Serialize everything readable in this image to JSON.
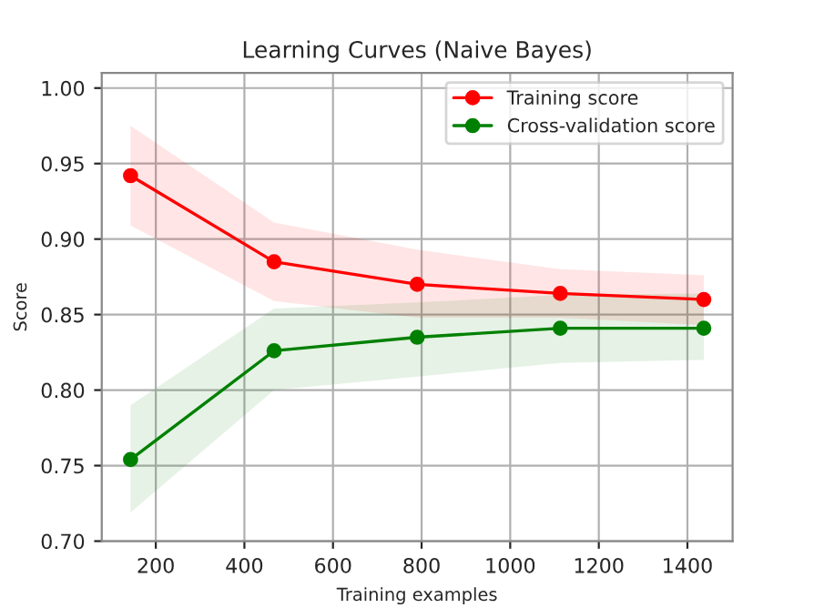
{
  "chart_data": {
    "type": "line",
    "title": "Learning Curves (Naive Bayes)",
    "xlabel": "Training examples",
    "ylabel": "Score",
    "x": [
      143,
      467,
      790,
      1113,
      1437
    ],
    "series": [
      {
        "name": "Training score",
        "color": "#ff0000",
        "values": [
          0.942,
          0.885,
          0.87,
          0.864,
          0.86
        ],
        "lower": [
          0.909,
          0.859,
          0.848,
          0.848,
          0.843
        ],
        "upper": [
          0.975,
          0.911,
          0.893,
          0.88,
          0.876
        ]
      },
      {
        "name": "Cross-validation score",
        "color": "#008000",
        "values": [
          0.754,
          0.826,
          0.835,
          0.841,
          0.841
        ],
        "lower": [
          0.719,
          0.8,
          0.809,
          0.818,
          0.82
        ],
        "upper": [
          0.79,
          0.854,
          0.858,
          0.863,
          0.864
        ]
      }
    ],
    "xlim": [
      78,
      1502
    ],
    "xticks": [
      200,
      400,
      600,
      800,
      1000,
      1200,
      1400
    ],
    "ylim": [
      0.7,
      1.01
    ],
    "yticks": [
      {
        "value": 0.7,
        "label": "0.70"
      },
      {
        "value": 0.75,
        "label": "0.75"
      },
      {
        "value": 0.8,
        "label": "0.80"
      },
      {
        "value": 0.85,
        "label": "0.85"
      },
      {
        "value": 0.9,
        "label": "0.90"
      },
      {
        "value": 0.95,
        "label": "0.95"
      },
      {
        "value": 1.0,
        "label": "1.00"
      }
    ],
    "grid": true,
    "legend": "upper right",
    "marker": "circle",
    "line_style": "solid"
  }
}
